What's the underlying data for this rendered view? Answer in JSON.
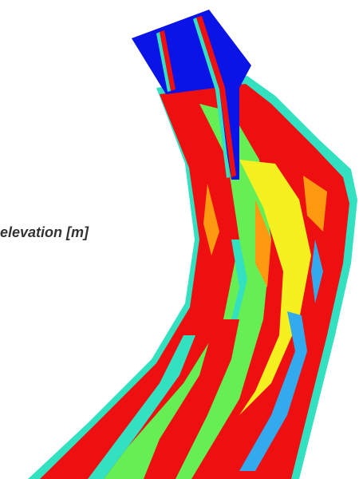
{
  "legend": {
    "label": "elevation [m]"
  }
}
